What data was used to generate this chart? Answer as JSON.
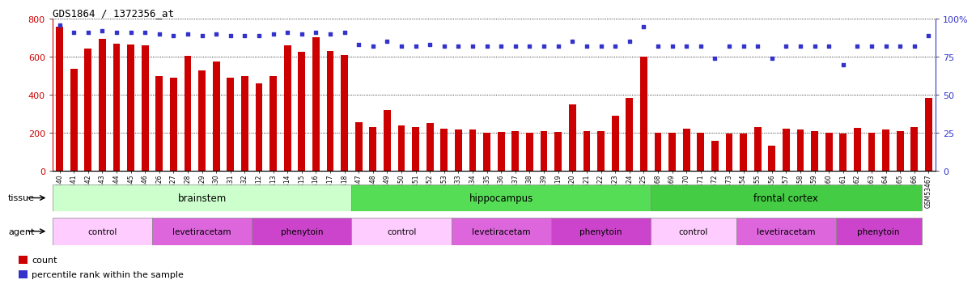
{
  "title": "GDS1864 / 1372356_at",
  "samples": [
    "GSM53440",
    "GSM53441",
    "GSM53442",
    "GSM53443",
    "GSM53444",
    "GSM53445",
    "GSM53446",
    "GSM53426",
    "GSM53427",
    "GSM53428",
    "GSM53429",
    "GSM53430",
    "GSM53431",
    "GSM53432",
    "GSM53412",
    "GSM53413",
    "GSM53414",
    "GSM53415",
    "GSM53416",
    "GSM53417",
    "GSM53418",
    "GSM53447",
    "GSM53448",
    "GSM53449",
    "GSM53450",
    "GSM53451",
    "GSM53452",
    "GSM53453",
    "GSM53433",
    "GSM53434",
    "GSM53435",
    "GSM53436",
    "GSM53437",
    "GSM53438",
    "GSM53439",
    "GSM53419",
    "GSM53420",
    "GSM53421",
    "GSM53422",
    "GSM53423",
    "GSM53424",
    "GSM53425",
    "GSM53468",
    "GSM53469",
    "GSM53470",
    "GSM53471",
    "GSM53472",
    "GSM53473",
    "GSM53454",
    "GSM53455",
    "GSM53456",
    "GSM53457",
    "GSM53458",
    "GSM53459",
    "GSM53460",
    "GSM53461",
    "GSM53462",
    "GSM53463",
    "GSM53464",
    "GSM53465",
    "GSM53466",
    "GSM53467"
  ],
  "counts": [
    760,
    535,
    645,
    695,
    670,
    665,
    660,
    500,
    490,
    605,
    530,
    575,
    490,
    500,
    460,
    500,
    660,
    625,
    705,
    630,
    610,
    255,
    230,
    320,
    240,
    230,
    250,
    220,
    215,
    215,
    200,
    205,
    210,
    200,
    210,
    205,
    350,
    210,
    210,
    290,
    385,
    600,
    200,
    200,
    220,
    200,
    155,
    195,
    195,
    230,
    130,
    220,
    215,
    210,
    200,
    195,
    225,
    200,
    215,
    210,
    230,
    385
  ],
  "percentiles": [
    96,
    91,
    91,
    92,
    91,
    91,
    91,
    90,
    89,
    90,
    89,
    90,
    89,
    89,
    89,
    90,
    91,
    90,
    91,
    90,
    91,
    83,
    82,
    85,
    82,
    82,
    83,
    82,
    82,
    82,
    82,
    82,
    82,
    82,
    82,
    82,
    85,
    82,
    82,
    82,
    85,
    95,
    82,
    82,
    82,
    82,
    74,
    82,
    82,
    82,
    74,
    82,
    82,
    82,
    82,
    70,
    82,
    82,
    82,
    82,
    82,
    89
  ],
  "bar_color": "#cc0000",
  "dot_color": "#3333cc",
  "ylim_left": [
    0,
    800
  ],
  "ylim_right": [
    0,
    100
  ],
  "yticks_left": [
    0,
    200,
    400,
    600,
    800
  ],
  "yticks_right": [
    0,
    25,
    50,
    75,
    100
  ],
  "ytick_labels_right": [
    "0",
    "25",
    "50",
    "75",
    "100%"
  ],
  "tissue_sections": [
    {
      "label": "brainstem",
      "start": 0,
      "end": 20,
      "color": "#ccffcc"
    },
    {
      "label": "hippocampus",
      "start": 21,
      "end": 41,
      "color": "#55dd55"
    },
    {
      "label": "frontal cortex",
      "start": 42,
      "end": 60,
      "color": "#44cc44"
    }
  ],
  "agent_sections": [
    {
      "label": "control",
      "start": 0,
      "end": 6,
      "color": "#ffccff"
    },
    {
      "label": "levetiracetam",
      "start": 7,
      "end": 13,
      "color": "#dd66dd"
    },
    {
      "label": "phenytoin",
      "start": 14,
      "end": 20,
      "color": "#cc44cc"
    },
    {
      "label": "control",
      "start": 21,
      "end": 27,
      "color": "#ffccff"
    },
    {
      "label": "levetiracetam",
      "start": 28,
      "end": 34,
      "color": "#dd66dd"
    },
    {
      "label": "phenytoin",
      "start": 35,
      "end": 41,
      "color": "#cc44cc"
    },
    {
      "label": "control",
      "start": 42,
      "end": 47,
      "color": "#ffccff"
    },
    {
      "label": "levetiracetam",
      "start": 48,
      "end": 54,
      "color": "#dd66dd"
    },
    {
      "label": "phenytoin",
      "start": 55,
      "end": 60,
      "color": "#cc44cc"
    }
  ],
  "legend_items": [
    {
      "label": "count",
      "color": "#cc0000"
    },
    {
      "label": "percentile rank within the sample",
      "color": "#3333cc"
    }
  ],
  "fig_width": 11.76,
  "fig_height": 3.75,
  "dpi": 100
}
